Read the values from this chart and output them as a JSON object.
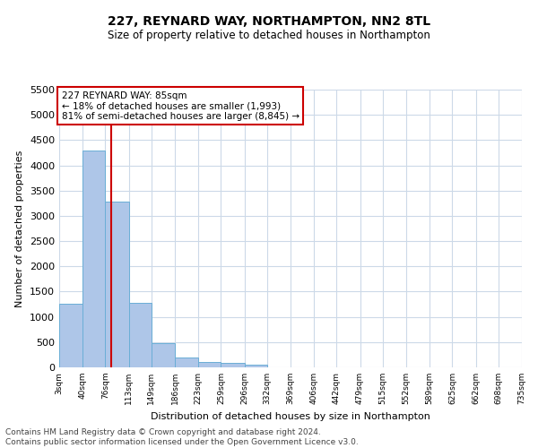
{
  "title": "227, REYNARD WAY, NORTHAMPTON, NN2 8TL",
  "subtitle": "Size of property relative to detached houses in Northampton",
  "xlabel": "Distribution of detached houses by size in Northampton",
  "ylabel": "Number of detached properties",
  "bar_color": "#aec6e8",
  "bar_edge_color": "#6aaed6",
  "background_color": "#ffffff",
  "grid_color": "#ccd9e8",
  "annotation_text": "227 REYNARD WAY: 85sqm\n← 18% of detached houses are smaller (1,993)\n81% of semi-detached houses are larger (8,845) →",
  "vline_x": 85,
  "vline_color": "#cc0000",
  "footnote": "Contains HM Land Registry data © Crown copyright and database right 2024.\nContains public sector information licensed under the Open Government Licence v3.0.",
  "bin_edges": [
    3,
    40,
    76,
    113,
    149,
    186,
    223,
    259,
    296,
    332,
    369,
    406,
    442,
    479,
    515,
    552,
    589,
    625,
    662,
    698,
    735
  ],
  "bar_heights": [
    1260,
    4300,
    3280,
    1270,
    475,
    195,
    105,
    80,
    55,
    0,
    0,
    0,
    0,
    0,
    0,
    0,
    0,
    0,
    0,
    0
  ],
  "ylim": [
    0,
    5500
  ],
  "xlim": [
    3,
    735
  ],
  "yticks": [
    0,
    500,
    1000,
    1500,
    2000,
    2500,
    3000,
    3500,
    4000,
    4500,
    5000,
    5500
  ],
  "tick_labels": [
    "3sqm",
    "40sqm",
    "76sqm",
    "113sqm",
    "149sqm",
    "186sqm",
    "223sqm",
    "259sqm",
    "296sqm",
    "332sqm",
    "369sqm",
    "406sqm",
    "442sqm",
    "479sqm",
    "515sqm",
    "552sqm",
    "589sqm",
    "625sqm",
    "662sqm",
    "698sqm",
    "735sqm"
  ],
  "title_fontsize": 10,
  "subtitle_fontsize": 8.5,
  "ylabel_fontsize": 8,
  "xlabel_fontsize": 8,
  "annotation_fontsize": 7.5,
  "footnote_fontsize": 6.5,
  "footnote_color": "#444444"
}
